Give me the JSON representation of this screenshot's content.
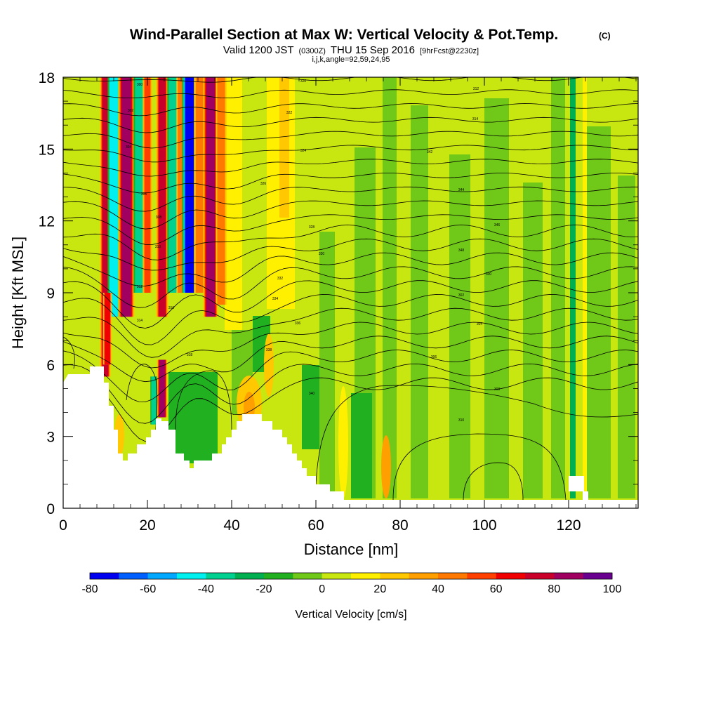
{
  "chart_data": {
    "type": "heatmap",
    "title": "Wind-Parallel Section at Max W: Vertical Velocity & Pot.Temp.",
    "title_mark": "(C)",
    "subtitle": {
      "valid": "Valid 1200 JST",
      "utc": "(0300Z)",
      "date": "THU 15 Sep 2016",
      "forecast": "[9hrFcst@2230z]"
    },
    "section_info": "i,j,k,angle=92,59,24,95",
    "xlabel": "Distance [nm]",
    "ylabel": "Height [Kft MSL]",
    "xlim": [
      0,
      136.5
    ],
    "ylim": [
      0,
      18
    ],
    "x_ticks": [
      "0",
      "20",
      "40",
      "60",
      "80",
      "100",
      "120"
    ],
    "y_ticks": [
      "0",
      "3",
      "6",
      "9",
      "12",
      "15",
      "18"
    ],
    "colorbar": {
      "label": "Vertical Velocity [cm/s]",
      "range": [
        -80,
        100
      ],
      "step": 10,
      "tick_labels": [
        "-80",
        "-60",
        "-40",
        "-20",
        "0",
        "20",
        "40",
        "60",
        "80",
        "100"
      ],
      "colors": [
        "#0000f0",
        "#0060ff",
        "#00a8ff",
        "#00f0f0",
        "#00d090",
        "#00b050",
        "#20b020",
        "#70c818",
        "#c8e610",
        "#fff000",
        "#ffc800",
        "#ffa000",
        "#ff7800",
        "#ff4000",
        "#f00000",
        "#c8002a",
        "#a00060",
        "#6a0090"
      ]
    },
    "vertical_velocity_bands": [
      {
        "x": 10,
        "width": 1.6,
        "value": 70,
        "z_top": 18,
        "z_bottom": 5.5
      },
      {
        "x": 12,
        "width": 1.8,
        "value": -45,
        "z_top": 18,
        "z_bottom": 8
      },
      {
        "x": 15,
        "width": 2.4,
        "value": 85,
        "z_top": 18,
        "z_bottom": 8
      },
      {
        "x": 18,
        "width": 1.6,
        "value": -40,
        "z_top": 18,
        "z_bottom": 9
      },
      {
        "x": 20,
        "width": 1.4,
        "value": 50,
        "z_top": 18,
        "z_bottom": 9
      },
      {
        "x": 23.5,
        "width": 1.8,
        "value": 70,
        "z_top": 18,
        "z_bottom": 8
      },
      {
        "x": 26,
        "width": 1.6,
        "value": -40,
        "z_top": 18,
        "z_bottom": 9
      },
      {
        "x": 28,
        "width": 1.4,
        "value": 45,
        "z_top": 18,
        "z_bottom": 9
      },
      {
        "x": 30,
        "width": 2.2,
        "value": -80,
        "z_top": 18,
        "z_bottom": 9
      },
      {
        "x": 32.5,
        "width": 1.8,
        "value": 40,
        "z_top": 18,
        "z_bottom": 9
      },
      {
        "x": 35,
        "width": 2.2,
        "value": 80,
        "z_top": 18,
        "z_bottom": 8
      },
      {
        "x": 37.5,
        "width": 1.6,
        "value": 40,
        "z_top": 18,
        "z_bottom": 8.5
      },
      {
        "x": 23.5,
        "width": 1.5,
        "value": 80,
        "z_top": 6.2,
        "z_bottom": 3.8
      },
      {
        "x": 21.5,
        "width": 1.0,
        "value": -40,
        "z_top": 5.5,
        "z_bottom": 3.5
      },
      {
        "x": 10.5,
        "width": 1.3,
        "value": 60,
        "z_top": 9,
        "z_bottom": 6
      }
    ],
    "potential_temperature_labels": [
      "300",
      "302",
      "304",
      "306",
      "308",
      "310",
      "312",
      "314",
      "316",
      "318",
      "320",
      "322",
      "324",
      "326",
      "328",
      "330",
      "332",
      "334",
      "336",
      "338",
      "340",
      "342",
      "344",
      "346",
      "348"
    ]
  }
}
